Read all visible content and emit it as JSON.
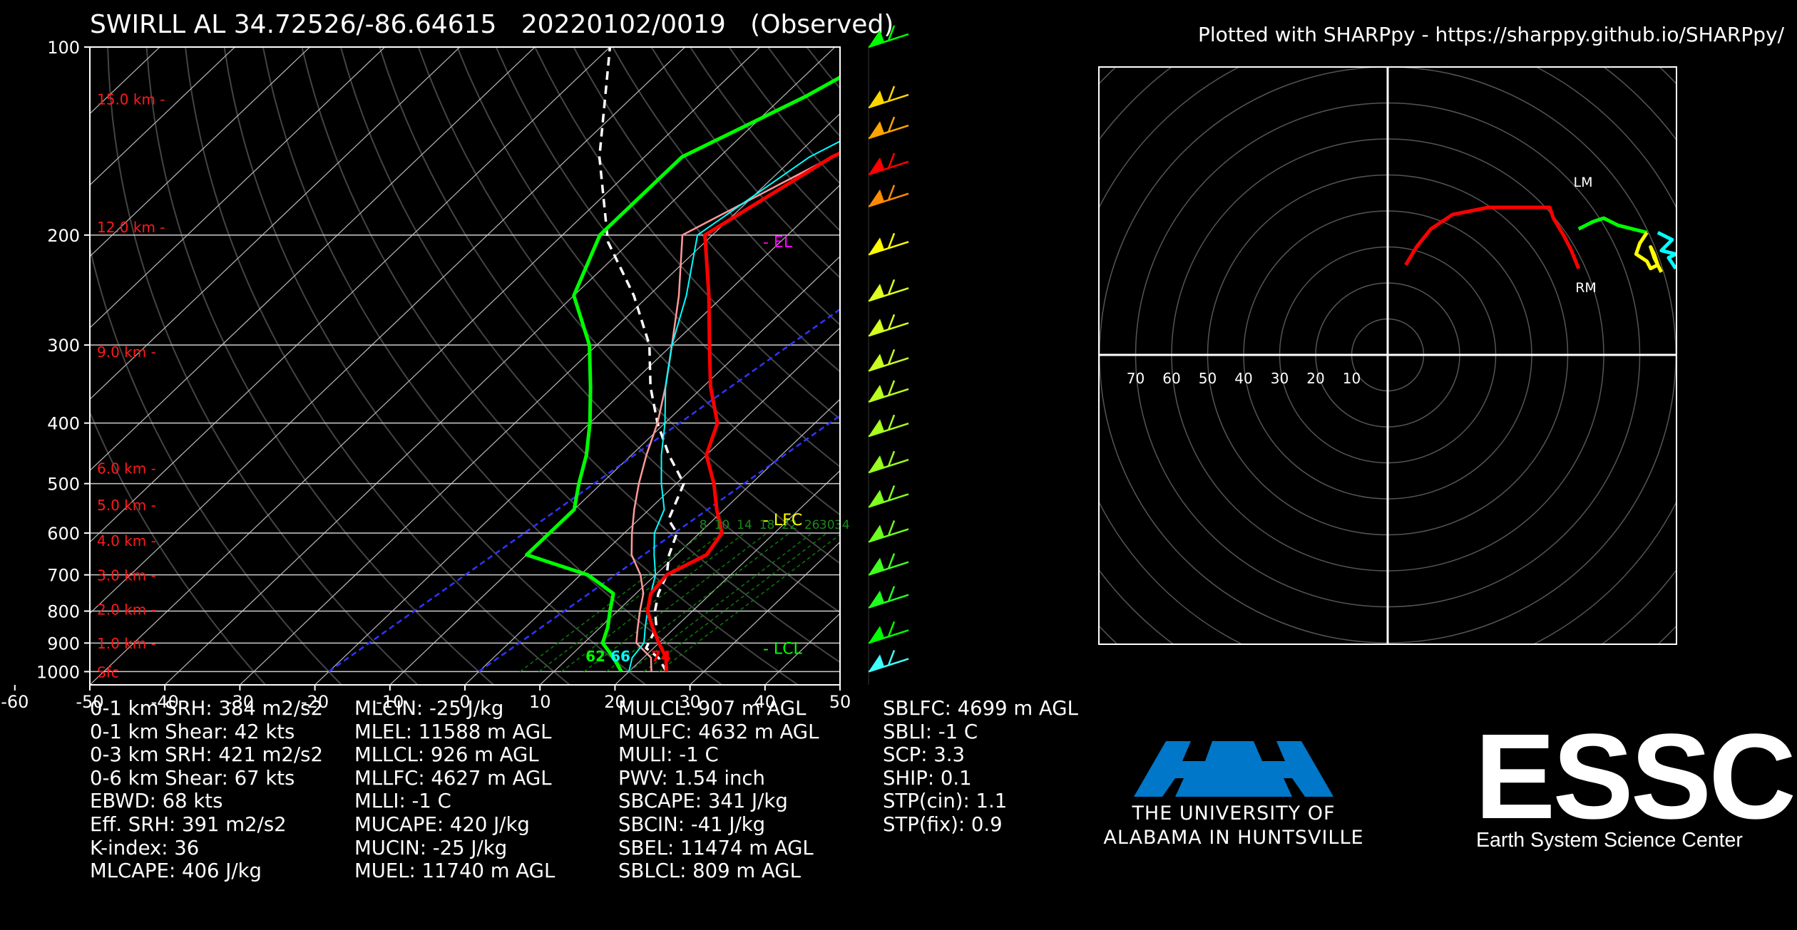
{
  "title": "SWIRLL AL 34.72526/-86.64615   20220102/0019   (Observed)",
  "credit": "Plotted with SHARPpy - https://sharppy.github.io/SHARPpy/",
  "chart_data": [
    {
      "type": "line",
      "name": "Skew-T log-P",
      "x_ticks": [
        -60,
        -50,
        -40,
        -30,
        -20,
        -10,
        0,
        10,
        20,
        30,
        40,
        50
      ],
      "pressure_ticks": [
        100,
        200,
        300,
        400,
        500,
        600,
        700,
        800,
        900,
        1000
      ],
      "xlim": [
        -50,
        50
      ],
      "plim": [
        1050,
        100
      ],
      "height_labels": [
        {
          "text": "Sfc",
          "p": 1000
        },
        {
          "text": "1.0 km -",
          "p": 899
        },
        {
          "text": "2.0 km -",
          "p": 794
        },
        {
          "text": "3.0 km -",
          "p": 700
        },
        {
          "text": "4.0 km -",
          "p": 616
        },
        {
          "text": "5.0 km -",
          "p": 540
        },
        {
          "text": "6.0 km -",
          "p": 472
        },
        {
          "text": "9.0 km -",
          "p": 307
        },
        {
          "text": "12.0 km -",
          "p": 194
        },
        {
          "text": "15.0 km -",
          "p": 121
        }
      ],
      "level_labels": [
        {
          "text": "- EL",
          "p": 205,
          "color": "#ff00ff"
        },
        {
          "text": "- LFC",
          "p": 571,
          "color": "#ffff00"
        },
        {
          "text": "- LCL",
          "p": 917,
          "color": "#00ff00"
        }
      ],
      "surface_labels": [
        {
          "text": "62",
          "color": "#00ff00"
        },
        {
          "text": "66",
          "color": "#00ffff"
        },
        {
          "text": "74",
          "color": "#ff0000"
        }
      ],
      "mixing_ratio_labels": [
        "8",
        "10",
        "14",
        "18",
        "22",
        "26",
        "30",
        "34"
      ],
      "temperature": [
        [
          25,
          1000
        ],
        [
          23,
          950
        ],
        [
          20,
          900
        ],
        [
          17,
          850
        ],
        [
          14,
          800
        ],
        [
          12,
          750
        ],
        [
          11.5,
          700
        ],
        [
          14,
          650
        ],
        [
          13,
          600
        ],
        [
          9,
          550
        ],
        [
          5,
          500
        ],
        [
          0,
          450
        ],
        [
          -3,
          400
        ],
        [
          -9,
          350
        ],
        [
          -15,
          300
        ],
        [
          -22,
          250
        ],
        [
          -31,
          200
        ],
        [
          -25,
          150
        ],
        [
          -13,
          110
        ],
        [
          -8,
          100
        ]
      ],
      "dewpoint": [
        [
          23,
          1000
        ],
        [
          21,
          950
        ],
        [
          17,
          900
        ],
        [
          15,
          850
        ],
        [
          13,
          800
        ],
        [
          11,
          750
        ],
        [
          8,
          700
        ],
        [
          4,
          650
        ],
        [
          1,
          600
        ],
        [
          -2,
          550
        ],
        [
          -5,
          500
        ],
        [
          -8,
          450
        ],
        [
          -11,
          400
        ],
        [
          -15,
          350
        ],
        [
          -20,
          300
        ],
        [
          -26,
          250
        ],
        [
          -34,
          200
        ],
        [
          -25,
          150
        ],
        [
          -13,
          110
        ],
        [
          -8,
          100
        ]
      ],
      "wetbulb": [
        [
          20,
          1000
        ],
        [
          18.5,
          950
        ],
        [
          18,
          900
        ],
        [
          16,
          850
        ],
        [
          14,
          800
        ],
        [
          12,
          750
        ],
        [
          10,
          700
        ],
        [
          7,
          650
        ],
        [
          4,
          600
        ],
        [
          2,
          550
        ],
        [
          -2,
          500
        ],
        [
          -6,
          450
        ],
        [
          -10,
          400
        ],
        [
          -15,
          350
        ],
        [
          -20,
          300
        ],
        [
          -25,
          250
        ],
        [
          -32,
          200
        ],
        [
          -28,
          150
        ],
        [
          -18,
          110
        ],
        [
          -13,
          100
        ]
      ],
      "dewpoint_green": [
        [
          19,
          1000
        ],
        [
          16,
          950
        ],
        [
          12.5,
          900
        ],
        [
          11,
          850
        ],
        [
          9,
          800
        ],
        [
          7,
          750
        ],
        [
          1,
          700
        ],
        [
          -10,
          650
        ],
        [
          -10,
          600
        ],
        [
          -10,
          550
        ],
        [
          -13,
          500
        ],
        [
          -16,
          450
        ],
        [
          -20,
          400
        ],
        [
          -25,
          350
        ],
        [
          -31,
          300
        ],
        [
          -40,
          250
        ],
        [
          -45,
          200
        ],
        [
          -45,
          150
        ],
        [
          -37,
          120
        ],
        [
          -32,
          100
        ]
      ],
      "parcel": [
        [
          25,
          1000
        ],
        [
          22,
          950
        ],
        [
          19,
          917
        ],
        [
          17.5,
          850
        ],
        [
          15,
          800
        ],
        [
          13,
          750
        ],
        [
          11.5,
          700
        ],
        [
          9,
          650
        ],
        [
          7,
          600
        ],
        [
          4,
          571
        ],
        [
          1,
          500
        ],
        [
          -5,
          450
        ],
        [
          -11,
          400
        ],
        [
          -17,
          350
        ],
        [
          -23,
          300
        ],
        [
          -32,
          250
        ],
        [
          -43,
          205
        ],
        [
          -56,
          150
        ],
        [
          -70,
          100
        ]
      ],
      "dgz_lines": [
        [
          -20,
          1000,
          10,
          100
        ],
        [
          0,
          1000,
          30,
          100
        ]
      ],
      "wind_barbs": [
        {
          "p": 100,
          "color": "#00ff00"
        },
        {
          "p": 125,
          "color": "#ffd700"
        },
        {
          "p": 140,
          "color": "#ffa500"
        },
        {
          "p": 160,
          "color": "#ff0000"
        },
        {
          "p": 180,
          "color": "#ff8c00"
        },
        {
          "p": 215,
          "color": "#ffff00"
        },
        {
          "p": 255,
          "color": "#e0ff20"
        },
        {
          "p": 290,
          "color": "#d4ff20"
        },
        {
          "p": 330,
          "color": "#c8ff20"
        },
        {
          "p": 370,
          "color": "#b8ff20"
        },
        {
          "p": 420,
          "color": "#a8ff20"
        },
        {
          "p": 480,
          "color": "#98ff20"
        },
        {
          "p": 545,
          "color": "#80ff20"
        },
        {
          "p": 620,
          "color": "#6cff20"
        },
        {
          "p": 700,
          "color": "#40ff20"
        },
        {
          "p": 790,
          "color": "#20ff20"
        },
        {
          "p": 900,
          "color": "#00ff00"
        },
        {
          "p": 1000,
          "color": "#40ffff"
        }
      ]
    },
    {
      "type": "line",
      "name": "Hodograph",
      "ring_labels": [
        "70",
        "60",
        "50",
        "40",
        "30",
        "20",
        "10"
      ],
      "motion_labels": [
        "LM",
        "RM"
      ],
      "traces": [
        {
          "color": "#ff0000",
          "points": [
            [
              5,
              25
            ],
            [
              8,
              30
            ],
            [
              12,
              35
            ],
            [
              18,
              39
            ],
            [
              28,
              41
            ],
            [
              45,
              41
            ],
            [
              46,
              38
            ],
            [
              49,
              33
            ],
            [
              51,
              29
            ],
            [
              53,
              24
            ]
          ]
        },
        {
          "color": "#00ff00",
          "points": [
            [
              53,
              35
            ],
            [
              57,
              37
            ],
            [
              60,
              38
            ],
            [
              64,
              36
            ],
            [
              68,
              35
            ],
            [
              72,
              34
            ]
          ]
        },
        {
          "color": "#ffff00",
          "points": [
            [
              72,
              34
            ],
            [
              70,
              31
            ],
            [
              69,
              28
            ],
            [
              72,
              26
            ],
            [
              73,
              24
            ],
            [
              75,
              25
            ],
            [
              74,
              28
            ],
            [
              73,
              30
            ],
            [
              74,
              27
            ],
            [
              76,
              23
            ]
          ]
        },
        {
          "color": "#00ffff",
          "points": [
            [
              75,
              34
            ],
            [
              79,
              32
            ],
            [
              76,
              29
            ],
            [
              80,
              28
            ],
            [
              78,
              27
            ],
            [
              80,
              24
            ]
          ]
        }
      ]
    }
  ],
  "stats": [
    [
      "0-1 km SRH: 384 m2/s2",
      "0-1 km Shear: 42 kts",
      "0-3 km SRH: 421 m2/s2",
      "0-6 km Shear: 67 kts",
      "EBWD: 68 kts",
      "Eff. SRH: 391 m2/s2",
      "K-index: 36",
      "MLCAPE: 406 J/kg"
    ],
    [
      "MLCIN: -25 J/kg",
      "MLEL: 11588 m AGL",
      "MLLCL: 926 m AGL",
      "MLLFC: 4627 m AGL",
      "MLLI: -1 C",
      "MUCAPE: 420 J/kg",
      "MUCIN: -25 J/kg",
      "MUEL: 11740 m AGL"
    ],
    [
      "MULCL: 907 m AGL",
      "MULFC: 4632 m AGL",
      "MULI: -1 C",
      "PWV: 1.54 inch",
      "SBCAPE: 341 J/kg",
      "SBCIN: -41 J/kg",
      "SBEL: 11474 m AGL",
      "SBLCL: 809 m AGL"
    ],
    [
      "SBLFC: 4699 m AGL",
      "SBLI: -1 C",
      "SCP: 3.3",
      "SHIP: 0.1",
      "STP(cin): 1.1",
      "STP(fix): 0.9"
    ]
  ],
  "logos": {
    "uah_line1": "THE UNIVERSITY OF",
    "uah_line2": "ALABAMA IN HUNTSVILLE",
    "uah_color": "#0077c8",
    "essc_big": "ESSC",
    "essc_small": "Earth System Science Center"
  }
}
